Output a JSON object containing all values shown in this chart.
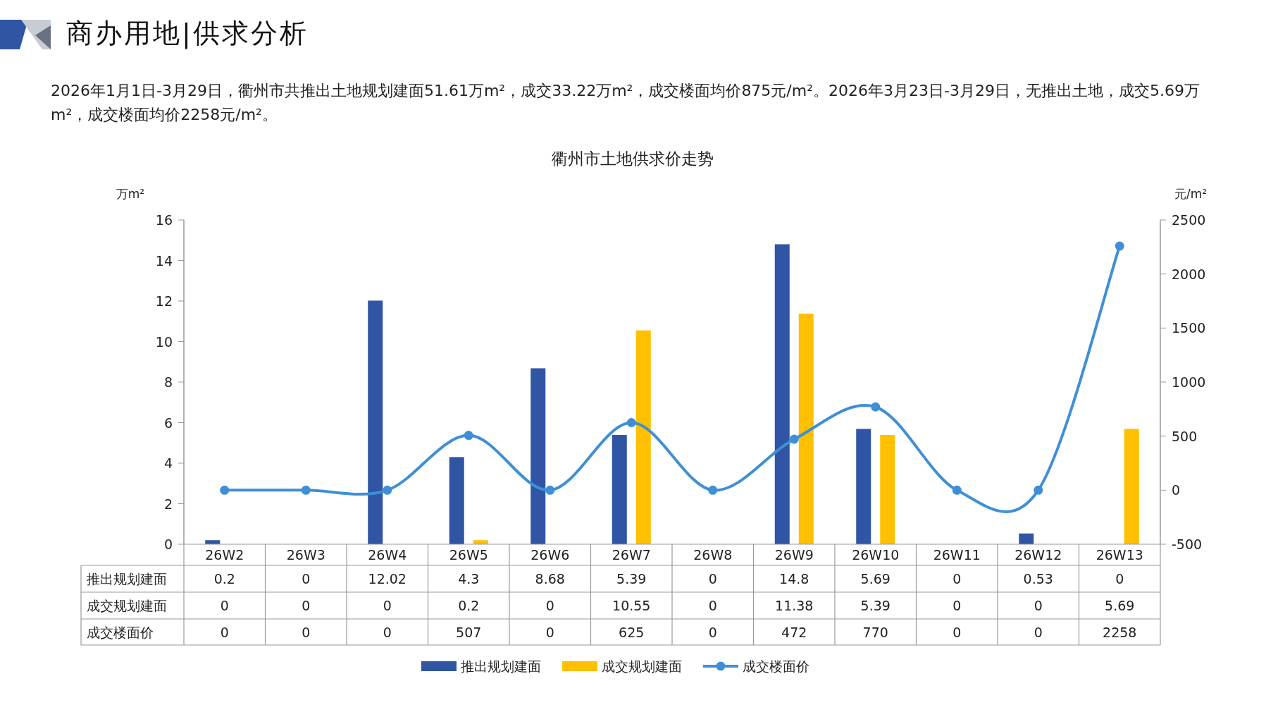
{
  "chart_data": {
    "type": "bar",
    "title": "衢州市土地供求价走势",
    "annotations": [
      "商办用地|供求分析",
      "2026年1月1日-3月29日，衢州市共推出土地规划建面51.61万m²，成交33.22万m²，成交楼面均价875元/m²。2026年3月23日-3月29日，无推出土地，成交5.69万m²，成交楼面均价2258元/m²。"
    ],
    "ylabel": "万m²",
    "y2label": "元/m²",
    "categories": [
      "26W2",
      "26W3",
      "26W4",
      "26W5",
      "26W6",
      "26W7",
      "26W8",
      "26W9",
      "26W10",
      "26W11",
      "26W12",
      "26W13"
    ],
    "series": [
      {
        "name": "推出规划建面",
        "color": "#2f55a4",
        "values": [
          0.2,
          0,
          12.02,
          4.3,
          8.68,
          5.39,
          0,
          14.8,
          5.69,
          0,
          0.53,
          0
        ]
      },
      {
        "name": "成交规划建面",
        "color": "#ffc000",
        "values": [
          0,
          0,
          0,
          0.2,
          0,
          10.55,
          0,
          11.38,
          5.39,
          0,
          0,
          5.69
        ]
      },
      {
        "name": "成交楼面价",
        "type": "line",
        "axis": "y2",
        "color": "#3f8fd6",
        "marker": "circle",
        "line_style": "solid",
        "values": [
          0,
          0,
          0,
          507,
          0,
          625,
          0,
          472,
          770,
          0,
          0,
          2258
        ]
      }
    ],
    "ylim": [
      0,
      16
    ],
    "yticks": [
      0,
      2,
      4,
      6,
      8,
      10,
      12,
      14,
      16
    ],
    "y2lim": [
      -500,
      2500
    ],
    "y2ticks": [
      -500,
      0,
      500,
      1000,
      1500,
      2000,
      2500
    ],
    "data_labels": true,
    "grid": false,
    "legend": "bottom"
  }
}
